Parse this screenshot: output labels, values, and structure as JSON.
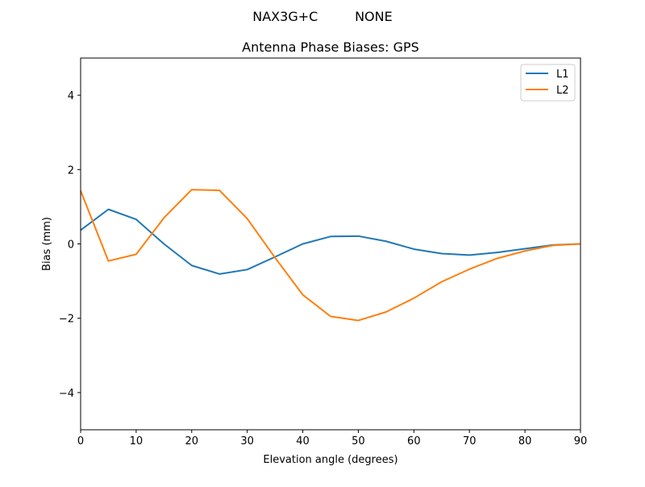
{
  "suptitle": "NAX3G+C         NONE",
  "chart_data": {
    "type": "line",
    "title": "Antenna Phase Biases: GPS",
    "xlabel": "Elevation angle (degrees)",
    "ylabel": "Bias (mm)",
    "xlim": [
      0,
      90
    ],
    "ylim": [
      -5,
      5
    ],
    "xticks": [
      0,
      10,
      20,
      30,
      40,
      50,
      60,
      70,
      80,
      90
    ],
    "yticks": [
      -4,
      -2,
      0,
      2,
      4
    ],
    "xtick_labels": [
      "0",
      "10",
      "20",
      "30",
      "40",
      "50",
      "60",
      "70",
      "80",
      "90"
    ],
    "ytick_labels": [
      "−4",
      "−2",
      "0",
      "2",
      "4"
    ],
    "grid": false,
    "legend_position": "top-right",
    "x": [
      0,
      5,
      10,
      15,
      20,
      25,
      30,
      35,
      40,
      45,
      50,
      55,
      60,
      65,
      70,
      75,
      80,
      85,
      90
    ],
    "series": [
      {
        "name": "L1",
        "color": "#1f77b4",
        "values": [
          0.37,
          0.93,
          0.66,
          0.0,
          -0.58,
          -0.81,
          -0.69,
          -0.35,
          0.0,
          0.2,
          0.21,
          0.07,
          -0.14,
          -0.26,
          -0.3,
          -0.23,
          -0.13,
          -0.03,
          0.0
        ]
      },
      {
        "name": "L2",
        "color": "#ff7f0e",
        "values": [
          1.43,
          -0.46,
          -0.28,
          0.7,
          1.46,
          1.44,
          0.68,
          -0.37,
          -1.37,
          -1.95,
          -2.06,
          -1.83,
          -1.46,
          -1.02,
          -0.68,
          -0.39,
          -0.19,
          -0.04,
          0.0
        ]
      }
    ]
  }
}
